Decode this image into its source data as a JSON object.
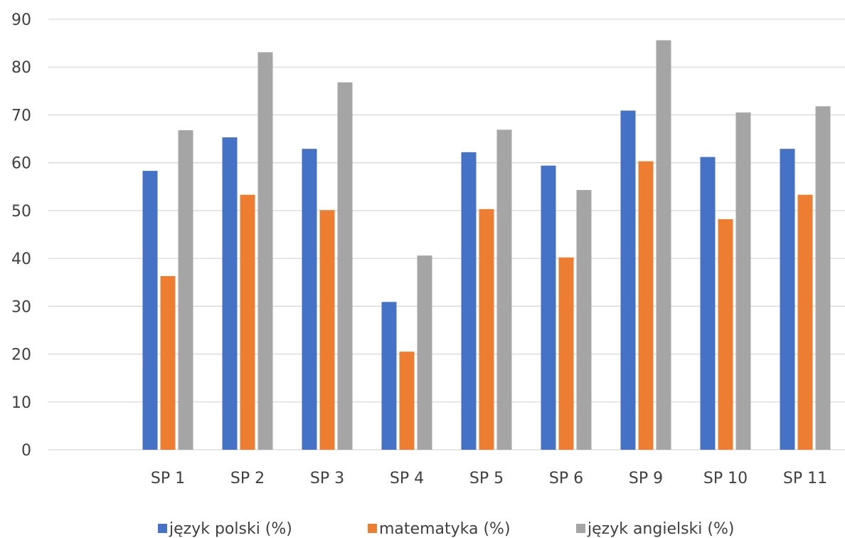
{
  "chart_data": {
    "type": "bar",
    "categories": [
      "",
      "SP 1",
      "SP 2",
      "SP 3",
      "SP 4",
      "SP 5",
      "SP 6",
      "SP 9",
      "SP 10",
      "SP 11"
    ],
    "series": [
      {
        "name": "język polski (%)",
        "color": "#4472C4",
        "values": [
          null,
          58.3,
          65.3,
          62.9,
          30.9,
          62.2,
          59.4,
          70.9,
          61.2,
          62.9
        ]
      },
      {
        "name": "matematyka (%)",
        "color": "#ED7D31",
        "values": [
          null,
          36.3,
          53.3,
          50.1,
          20.5,
          50.3,
          40.2,
          60.3,
          48.2,
          53.3
        ]
      },
      {
        "name": "język angielski (%)",
        "color": "#A5A5A5",
        "values": [
          null,
          66.8,
          83.1,
          76.8,
          40.6,
          66.9,
          54.3,
          85.6,
          70.5,
          71.8
        ]
      }
    ],
    "ylim": [
      0,
      90
    ],
    "yticks": [
      0,
      10,
      20,
      30,
      40,
      50,
      60,
      70,
      80,
      90
    ],
    "grid": true,
    "legend_position": "bottom"
  }
}
